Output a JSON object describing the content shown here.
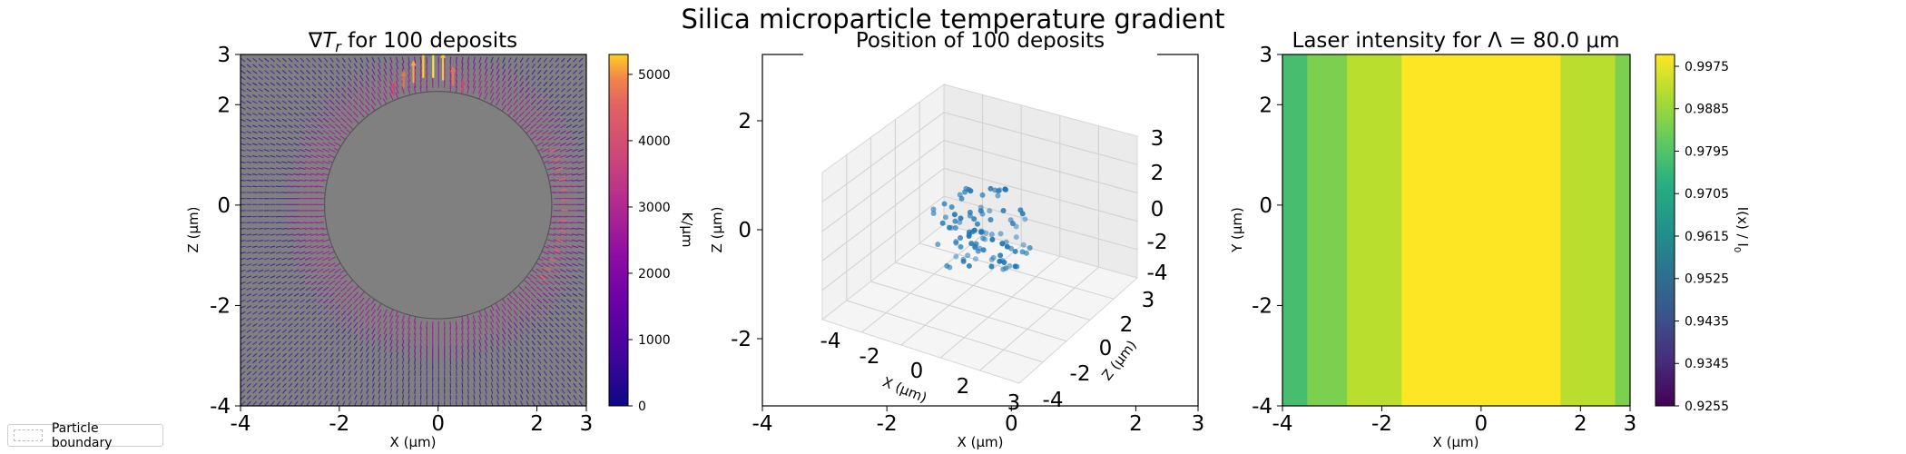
{
  "figure": {
    "suptitle": "Silica microparticle temperature gradient"
  },
  "legend": {
    "label": "Particle boundary"
  },
  "chart_data": [
    {
      "type": "heatmap",
      "subtype": "quiver",
      "title": "∇T_r for 100 deposits",
      "title_parts": {
        "nabla": "∇",
        "base": "T",
        "sub": "r",
        "rest": " for 100 deposits"
      },
      "xlabel": "X (μm)",
      "ylabel": "Z (μm)",
      "xlim": [
        -4,
        3
      ],
      "ylim": [
        -4,
        3
      ],
      "xticks": [
        "-4",
        "-2",
        "0",
        "2",
        "3"
      ],
      "yticks": [
        "-4",
        "-2",
        "0",
        "2",
        "3"
      ],
      "xtick_values": [
        -4,
        -2,
        0,
        2,
        3
      ],
      "ytick_values": [
        -4,
        -2,
        0,
        2,
        3
      ],
      "background_color": "#808080",
      "particle": {
        "center": [
          0,
          0
        ],
        "radius": 2.3,
        "fill": "#808080",
        "edge": "#555555"
      },
      "colorbar": {
        "label": "K/μm",
        "min": 0,
        "max": 5300,
        "ticks": [
          "0",
          "1000",
          "2000",
          "3000",
          "4000",
          "5000"
        ],
        "tick_values": [
          0,
          1000,
          2000,
          3000,
          4000,
          5000
        ],
        "colormap": "plasma"
      }
    },
    {
      "type": "scatter",
      "subtype": "3d",
      "title": "Position of 100 deposits",
      "outer_xlabel": "X (μm)",
      "outer_ylabel": "Z (μm)",
      "outer_xticks": [
        "-4",
        "-2",
        "0",
        "2",
        "3"
      ],
      "outer_xtick_values": [
        -4,
        -2,
        0,
        2,
        3
      ],
      "outer_yticks": [
        "-2",
        "0",
        "2"
      ],
      "outer_ytick_values": [
        -2,
        0,
        2
      ],
      "axis3d": {
        "xlabel": "X (μm)",
        "zlabel": "Z (μm)",
        "xticks": [
          "-4",
          "-2",
          "0",
          "2",
          "3"
        ],
        "yticks": [
          "-4",
          "-2",
          "0",
          "2",
          "3"
        ],
        "zticks": [
          "-4",
          "-2",
          "0",
          "2",
          "3"
        ]
      },
      "point_count": 100,
      "point_color": "#1f77b4"
    },
    {
      "type": "heatmap",
      "title": "Laser intensity for Λ = 80.0 μm",
      "xlabel": "X (μm)",
      "ylabel": "Y (μm)",
      "xlim": [
        -4,
        3
      ],
      "ylim": [
        -4,
        3
      ],
      "xticks": [
        "-4",
        "-2",
        "0",
        "2",
        "3"
      ],
      "yticks": [
        "-4",
        "-2",
        "0",
        "2",
        "3"
      ],
      "xtick_values": [
        -4,
        -2,
        0,
        2,
        3
      ],
      "ytick_values": [
        -4,
        -2,
        0,
        2,
        3
      ],
      "period_um": 80.0,
      "intensity_min": 0.9255,
      "intensity_max": 1.0,
      "colorbar": {
        "label": "I(x) / I0",
        "label_parts": {
          "base": "I(x) / I",
          "sub": "0"
        },
        "colormap": "viridis",
        "min": 0.9255,
        "max": 1.0,
        "ticks": [
          "0.9255",
          "0.9345",
          "0.9435",
          "0.9525",
          "0.9615",
          "0.9705",
          "0.9795",
          "0.9885",
          "0.9975"
        ],
        "tick_values": [
          0.9255,
          0.9345,
          0.9435,
          0.9525,
          0.9615,
          0.9705,
          0.9795,
          0.9885,
          0.9975
        ]
      }
    }
  ]
}
